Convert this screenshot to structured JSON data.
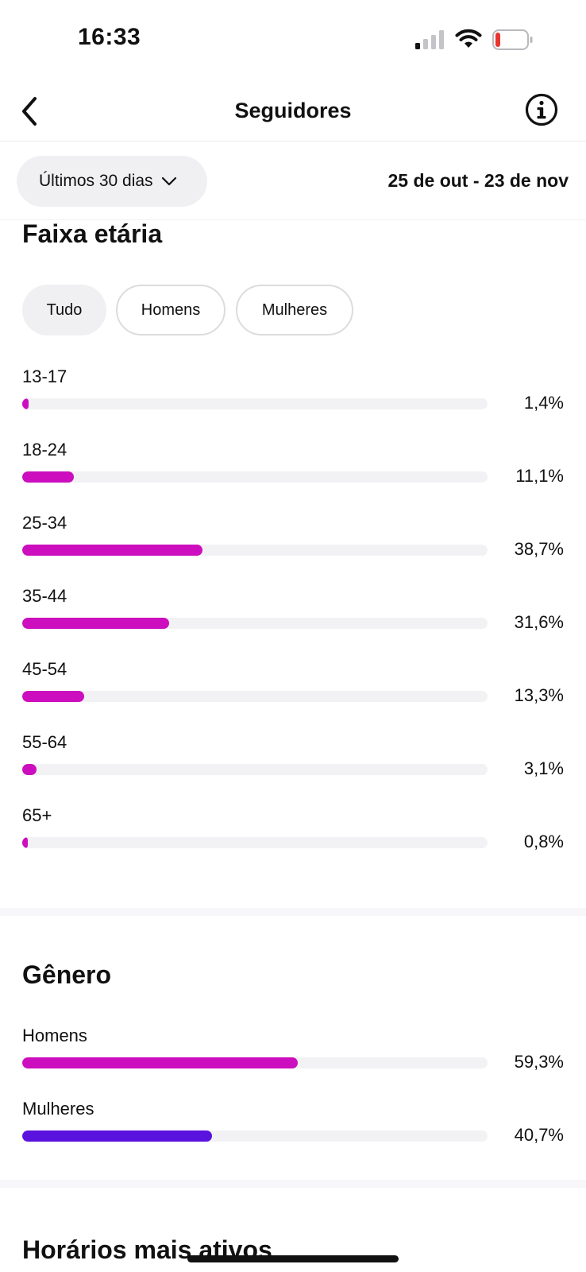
{
  "status_bar": {
    "time": "16:33"
  },
  "header": {
    "title": "Seguidores"
  },
  "filter": {
    "period_label": "Últimos 30 dias",
    "date_range": "25 de out - 23 de nov"
  },
  "age_section": {
    "title": "Faixa etária",
    "chips": [
      "Tudo",
      "Homens",
      "Mulheres"
    ],
    "selected_chip": "Tudo",
    "rows": [
      {
        "label": "13-17",
        "value_text": "1,4%",
        "value": 1.4
      },
      {
        "label": "18-24",
        "value_text": "11,1%",
        "value": 11.1
      },
      {
        "label": "25-34",
        "value_text": "38,7%",
        "value": 38.7
      },
      {
        "label": "35-44",
        "value_text": "31,6%",
        "value": 31.6
      },
      {
        "label": "45-54",
        "value_text": "13,3%",
        "value": 13.3
      },
      {
        "label": "55-64",
        "value_text": "3,1%",
        "value": 3.1
      },
      {
        "label": "65+",
        "value_text": "0,8%",
        "value": 0.8
      }
    ],
    "bar_color": "#cc0ebf"
  },
  "gender_section": {
    "title": "Gênero",
    "rows": [
      {
        "label": "Homens",
        "value_text": "59,3%",
        "value": 59.3,
        "color": "#cc0ebf"
      },
      {
        "label": "Mulheres",
        "value_text": "40,7%",
        "value": 40.7,
        "color": "#5a12de"
      }
    ]
  },
  "active_times_section": {
    "title": "Horários mais ativos"
  }
}
